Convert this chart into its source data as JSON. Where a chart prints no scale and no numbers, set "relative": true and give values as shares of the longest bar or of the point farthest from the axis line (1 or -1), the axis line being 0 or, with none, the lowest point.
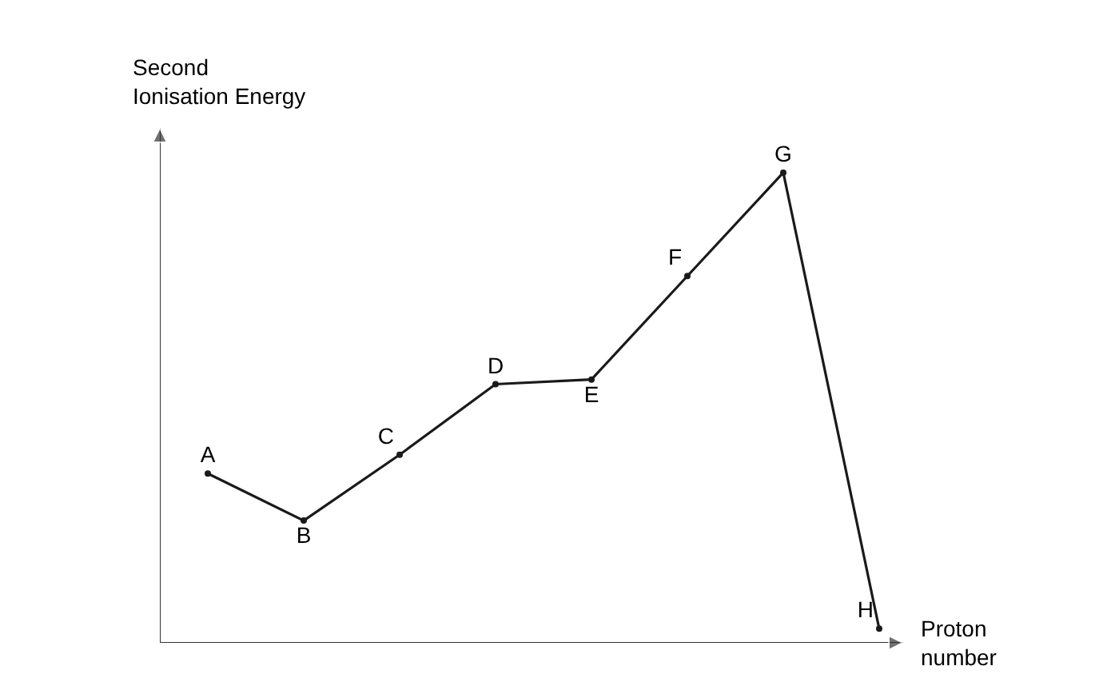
{
  "chart_data": {
    "type": "line",
    "relative": true,
    "xlabel": "Proton number",
    "ylabel": "Second\nIonisation Energy",
    "categories": [
      "A",
      "B",
      "C",
      "D",
      "E",
      "F",
      "G",
      "H"
    ],
    "series": [
      {
        "color": "#1a1a1a",
        "values": [
          0.36,
          0.26,
          0.4,
          0.55,
          0.56,
          0.78,
          1,
          0.03
        ]
      }
    ],
    "marker": "circle",
    "line_style": "solid",
    "grid": false,
    "legend": false,
    "tick_labels": false
  }
}
